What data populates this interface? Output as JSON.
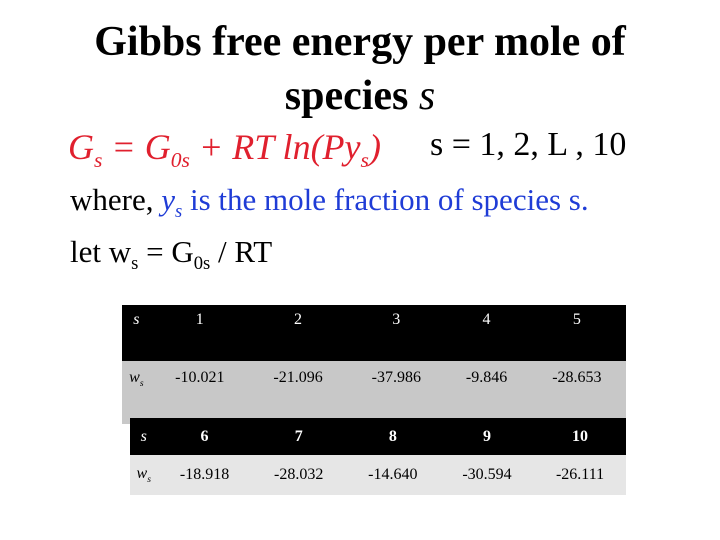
{
  "title": {
    "line1": "Gibbs free energy per mole of",
    "line2": "species",
    "line2_var": "s"
  },
  "equation": [
    {
      "text": "G",
      "sub": "s"
    },
    {
      "text": " = G",
      "sub": "0s"
    },
    {
      "text": " + RT ln(Py",
      "sub": "s"
    },
    {
      "text": ")"
    }
  ],
  "range": [
    {
      "text": "s = 1, 2, L , 10"
    }
  ],
  "where_line": [
    {
      "text": "where, "
    },
    {
      "text": "y",
      "sub": "s"
    },
    {
      "text": " is the mole fraction of species s."
    }
  ],
  "let_line": [
    {
      "text": "let w",
      "sub": "s"
    },
    {
      "text": " = G",
      "sub": "0s"
    },
    {
      "text": " / RT"
    }
  ],
  "tables": [
    {
      "header": [
        "s",
        "1",
        "2",
        "3",
        "4",
        "5"
      ],
      "row_label": {
        "text": "w",
        "sub": "s"
      },
      "values": [
        "-10.021",
        "-21.096",
        "-37.986",
        "-9.846",
        "-28.653"
      ]
    },
    {
      "header": [
        "s",
        "6",
        "7",
        "8",
        "9",
        "10"
      ],
      "row_label": {
        "text": "w",
        "sub": "s"
      },
      "values": [
        "-18.918",
        "-28.032",
        "-14.640",
        "-30.594",
        "-26.111"
      ]
    }
  ]
}
